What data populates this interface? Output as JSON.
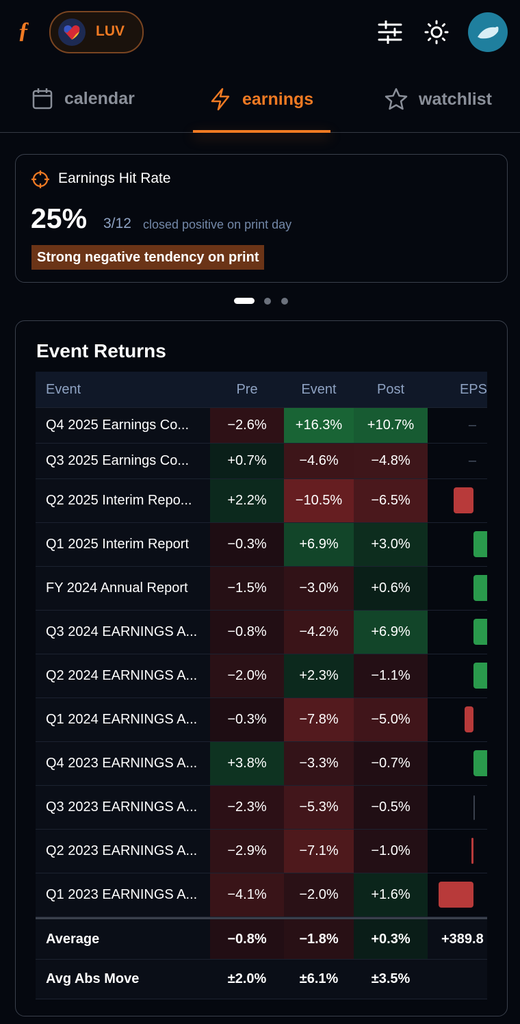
{
  "header": {
    "logo": "ƒ",
    "ticker": "LUV"
  },
  "tabs": [
    "calendar",
    "earnings",
    "watchlist"
  ],
  "hit_rate": {
    "title": "Earnings Hit Rate",
    "value": "25%",
    "ratio": "3/12",
    "caption": "closed positive on print day",
    "badge": "Strong negative tendency on print"
  },
  "event_returns": {
    "title": "Event Returns",
    "columns": [
      "Event",
      "Pre",
      "Event",
      "Post",
      "EPS"
    ],
    "rows": [
      [
        "Q4 2025 Earnings Co...",
        "−2.6%",
        "+16.3%",
        "+10.7%",
        "–"
      ],
      [
        "Q3 2025 Earnings Co...",
        "+0.7%",
        "−4.6%",
        "−4.8%",
        "–"
      ],
      [
        "Q2 2025 Interim Repo...",
        "+2.2%",
        "−10.5%",
        "−6.5%"
      ],
      [
        "Q1 2025 Interim Report",
        "−0.3%",
        "+6.9%",
        "+3.0%"
      ],
      [
        "FY 2024 Annual Report",
        "−1.5%",
        "−3.0%",
        "+0.6%"
      ],
      [
        "Q3 2024 EARNINGS A...",
        "−0.8%",
        "−4.2%",
        "+6.9%"
      ],
      [
        "Q2 2024 EARNINGS A...",
        "−2.0%",
        "+2.3%",
        "−1.1%"
      ],
      [
        "Q1 2024 EARNINGS A...",
        "−0.3%",
        "−7.8%",
        "−5.0%"
      ],
      [
        "Q4 2023 EARNINGS A...",
        "+3.8%",
        "−3.3%",
        "−0.7%"
      ],
      [
        "Q3 2023 EARNINGS A...",
        "−2.3%",
        "−5.3%",
        "−0.5%"
      ],
      [
        "Q2 2023 EARNINGS A...",
        "−2.9%",
        "−7.1%",
        "−1.0%"
      ],
      [
        "Q1 2023 EARNINGS A...",
        "−4.1%",
        "−2.0%",
        "+1.6%"
      ]
    ],
    "summary": [
      [
        "Average",
        "−0.8%",
        "−1.8%",
        "+0.3%",
        "+389.8"
      ],
      [
        "Avg Abs Move",
        "±2.0%",
        "±6.1%",
        "±3.5%"
      ]
    ]
  }
}
